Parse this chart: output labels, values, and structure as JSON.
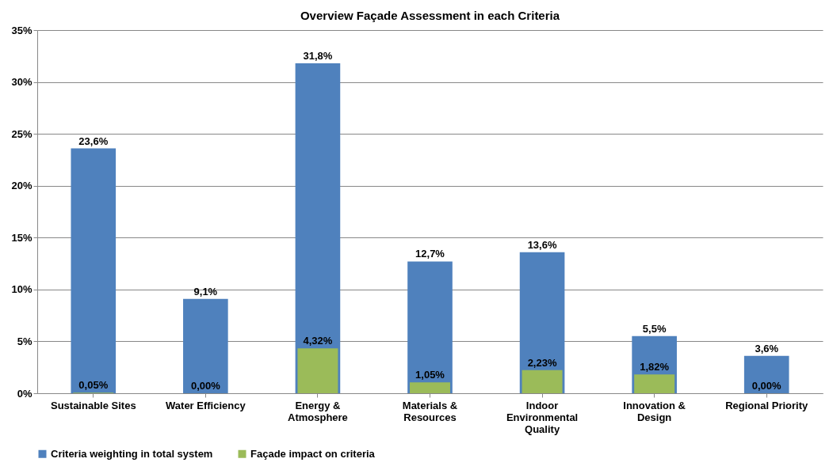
{
  "chart_data": {
    "type": "bar",
    "title": "Overview Façade Assessment in each Criteria",
    "categories": [
      "Sustainable Sites",
      "Water Efficiency",
      "Energy & Atmosphere",
      "Materials & Resources",
      "Indoor Environmental Quality",
      "Innovation & Design",
      "Regional Priority"
    ],
    "series": [
      {
        "name": "Criteria weighting in total system",
        "color": "#4f81bd",
        "values": [
          23.6,
          9.1,
          31.8,
          12.7,
          13.6,
          5.5,
          3.6
        ],
        "value_labels": [
          "23,6%",
          "9,1%",
          "31,8%",
          "12,7%",
          "13,6%",
          "5,5%",
          "3,6%"
        ]
      },
      {
        "name": "Façade impact on criteria",
        "color": "#9bbb59",
        "values": [
          0.05,
          0,
          4.32,
          1.05,
          2.23,
          1.82,
          0
        ],
        "value_labels": [
          "0,05%",
          "0,00%",
          "4,32%",
          "1,05%",
          "2,23%",
          "1,82%",
          "0,00%"
        ]
      }
    ],
    "ylim": [
      0,
      35
    ],
    "yticks": [
      {
        "value": 0,
        "label": "0%"
      },
      {
        "value": 5,
        "label": "5%"
      },
      {
        "value": 10,
        "label": "10%"
      },
      {
        "value": 15,
        "label": "15%"
      },
      {
        "value": 20,
        "label": "20%"
      },
      {
        "value": 25,
        "label": "25%"
      },
      {
        "value": 30,
        "label": "30%"
      },
      {
        "value": 35,
        "label": "35%"
      }
    ],
    "grid": "y",
    "legend": "bottom"
  }
}
